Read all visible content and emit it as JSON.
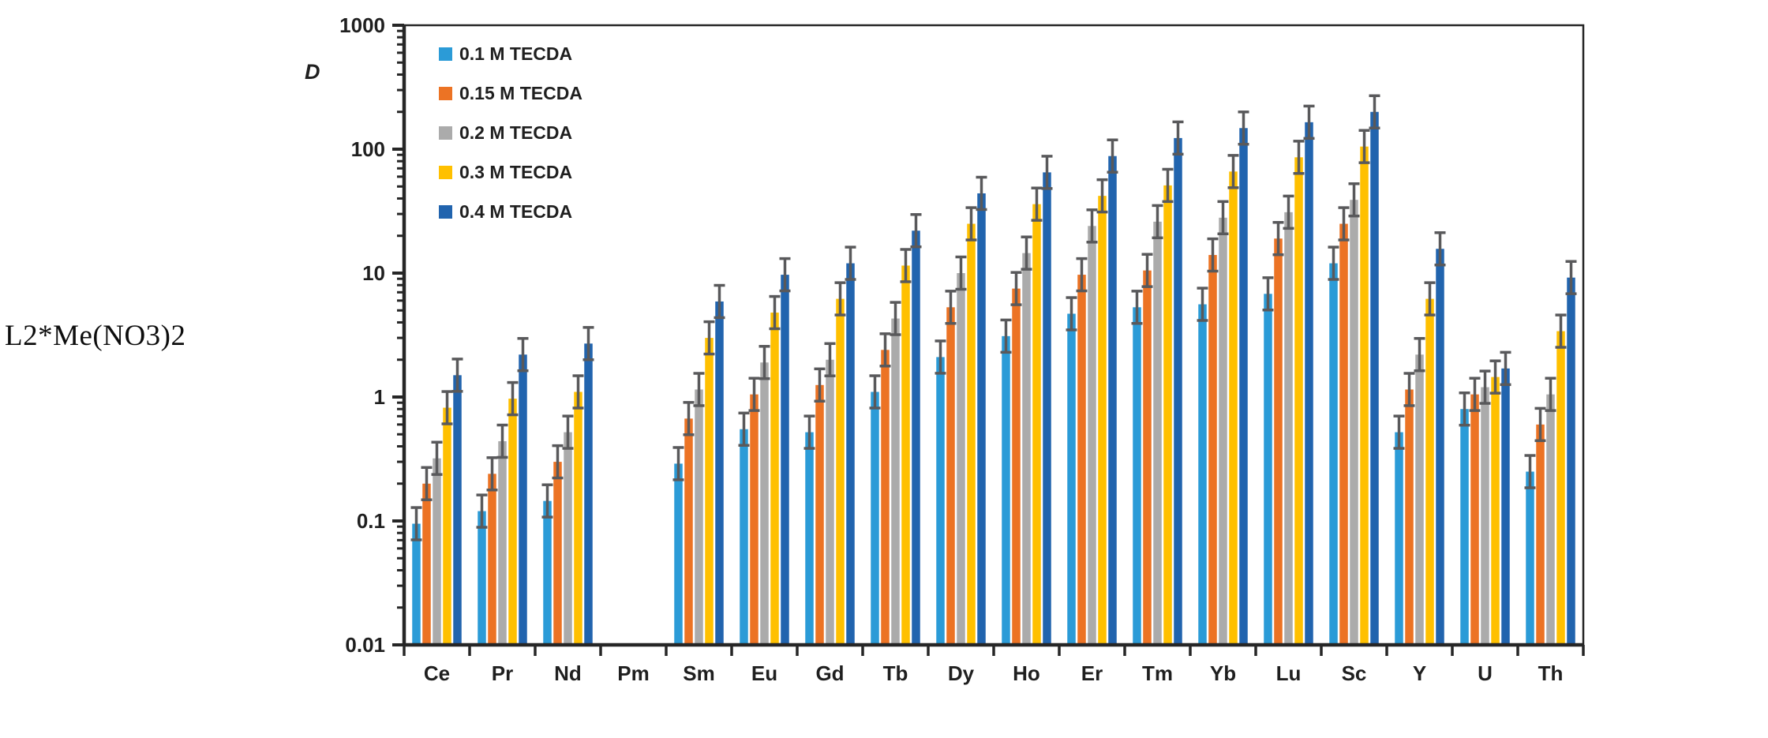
{
  "figure_label": "L2*Me(NO3)2",
  "chart_data": {
    "type": "bar",
    "scale": "log-y",
    "title": "",
    "xlabel": "",
    "ylabel": "D",
    "ylim": [
      0.01,
      1000
    ],
    "y_tick_labels": [
      "1000",
      "100",
      "10",
      "1",
      "0.1",
      "0.01"
    ],
    "y_tick_values": [
      1000,
      100,
      10,
      1,
      0.1,
      0.01
    ],
    "grid": false,
    "legend_position": "top-left-inside",
    "empty_category": "Pm",
    "error_bars": true,
    "error_factor": 1.35,
    "categories": [
      "Ce",
      "Pr",
      "Nd",
      "Pm",
      "Sm",
      "Eu",
      "Gd",
      "Tb",
      "Dy",
      "Ho",
      "Er",
      "Tm",
      "Yb",
      "Lu",
      "Sc",
      "Y",
      "U",
      "Th"
    ],
    "series": [
      {
        "name": "0.1 M TECDA",
        "color": "#2B9BD7",
        "values": [
          0.095,
          0.12,
          0.145,
          null,
          0.29,
          0.55,
          0.52,
          1.1,
          2.1,
          3.1,
          4.7,
          5.3,
          5.6,
          6.8,
          12,
          0.52,
          0.8,
          0.25
        ]
      },
      {
        "name": "0.15 M TECDA",
        "color": "#EC7324",
        "values": [
          0.2,
          0.24,
          0.3,
          null,
          0.67,
          1.05,
          1.25,
          2.4,
          5.3,
          7.5,
          9.7,
          10.5,
          14,
          19,
          25,
          1.15,
          1.05,
          0.6
        ]
      },
      {
        "name": "0.2 M TECDA",
        "color": "#ABABAB",
        "values": [
          0.32,
          0.44,
          0.52,
          null,
          1.15,
          1.9,
          2.0,
          4.3,
          10,
          14.5,
          24,
          26,
          28,
          31,
          39,
          2.2,
          1.2,
          1.05
        ]
      },
      {
        "name": "0.3 M TECDA",
        "color": "#FFC000",
        "values": [
          0.82,
          0.97,
          1.1,
          null,
          3.0,
          4.8,
          6.2,
          11.5,
          25,
          36,
          42,
          51,
          66,
          86,
          105,
          6.2,
          1.45,
          3.4
        ]
      },
      {
        "name": "0.4 M TECDA",
        "color": "#2164AE",
        "values": [
          1.5,
          2.2,
          2.7,
          null,
          5.9,
          9.7,
          12,
          22,
          44,
          65,
          88,
          123,
          148,
          165,
          200,
          15.7,
          1.7,
          9.2
        ]
      }
    ]
  },
  "colors": {
    "axis": "#262626",
    "error_bar": "#59595B",
    "background": "#FFFFFF"
  }
}
